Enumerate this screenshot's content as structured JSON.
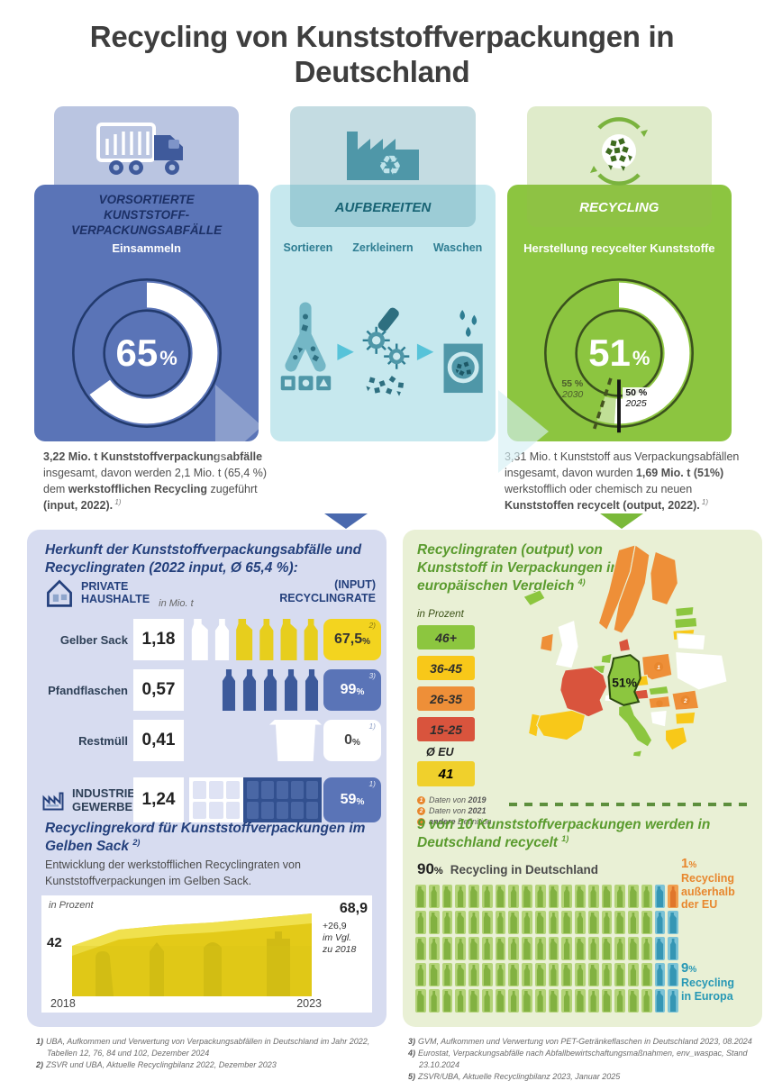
{
  "title": "Recycling von Kunststoffverpackungen in Deutschland",
  "palette": {
    "blue_panel": "#5a74b7",
    "navy": "#24407c",
    "teal_panel": "#c6e8ee",
    "teal_dark": "#2e7d92",
    "green_panel": "#8cc540",
    "green_text": "#5a9b2e",
    "yellow": "#f3d41f",
    "orange": "#e8872e",
    "red": "#d9543d",
    "lavender_card": "#d7dcf0",
    "green_card": "#e9f0d5",
    "teal_stat": "#2798b5"
  },
  "flow": {
    "step1": {
      "badge": "VORSORTIERTE  KUNSTSTOFF-VERPACKUNGSABFÄLLE",
      "subtitle": "Einsammeln",
      "donut_value": "65",
      "donut_unit": "%"
    },
    "step2": {
      "badge": "AUFBEREITEN",
      "steps": [
        "Sortieren",
        "Zerkleinern",
        "Waschen"
      ]
    },
    "step3": {
      "badge": "RECYCLING",
      "subtitle": "Herstellung recycelter Kunststoffe",
      "donut_value": "51",
      "donut_unit": "%",
      "marker_2030_pct": "55 %",
      "marker_2030_year": "2030",
      "marker_2025_pct": "50 %",
      "marker_2025_year": "2025"
    },
    "note_left": {
      "segments": [
        {
          "t": "3,22 Mio. t Kunststoffverpackungsabfälle",
          "b": true
        },
        {
          "t": " insgesamt, davon werden 2,1 Mio. t (65,4 %) dem "
        },
        {
          "t": "werkstofflichen Recycling",
          "b": true
        },
        {
          "t": " zugeführt "
        },
        {
          "t": "(input, 2022).",
          "b": true
        },
        {
          "t": " 1)",
          "sup": true
        }
      ]
    },
    "note_right": {
      "segments": [
        {
          "t": "3,31 Mio. t Kunststoff aus Verpackungsabfällen insgesamt, davon wurden "
        },
        {
          "t": "1,69 Mio. t",
          "b": true
        },
        {
          "t": " "
        },
        {
          "t": "(51%)",
          "b": true
        },
        {
          "t": " werkstofflich oder chemisch zu neuen "
        },
        {
          "t": "Kunststoffen recycelt (output, 2022).",
          "b": true
        },
        {
          "t": " 1)",
          "sup": true
        }
      ]
    }
  },
  "sources": {
    "heading": "Herkunft der Kunststoffverpackungsabfälle und Recyclingraten (2022 input, Ø 65,4 %):",
    "group1_line1": "PRIVATE",
    "group1_line2": "HAUSHALTE",
    "unit_label": "in Mio. t",
    "rate_header_line1": "(INPUT)",
    "rate_header_line2": "RECYCLINGRATE",
    "rows": [
      {
        "label": "Gelber Sack",
        "value": "1,18",
        "rate": "67,5",
        "unit": "%",
        "fn": "2)"
      },
      {
        "label": "Pfandflaschen",
        "value": "0,57",
        "rate": "99",
        "unit": "%",
        "fn": "3)"
      },
      {
        "label": "Restmüll",
        "value": "0,41",
        "rate": "0",
        "unit": "%",
        "fn": "1)"
      }
    ],
    "industry": {
      "label_line1": "INDUSTRIE",
      "label_line2": "GEWERBE",
      "value": "1,24",
      "rate": "59",
      "unit": "%",
      "fn": "1)"
    }
  },
  "record": {
    "heading": "Recyclingrekord für Kunststoffverpackungen im Gelben Sack",
    "heading_fn": "2)",
    "description": "Entwicklung der werkstofflichen Recyclingraten von Kunststoffverpackungen im Gelben Sack.",
    "unit_label": "in Prozent",
    "start_value": "42",
    "end_value": "68,9",
    "delta_line1": "+26,9",
    "delta_line2": "im Vgl.",
    "delta_line3": "zu 2018",
    "start_year": "2018",
    "end_year": "2023"
  },
  "map": {
    "heading": "Recyclingraten (output) von Kunststoff in Verpackungen im europäischen Vergleich",
    "heading_fn": "4)",
    "unit_label": "in Prozent",
    "legend": [
      {
        "label": "46+",
        "color": "#8cc63f"
      },
      {
        "label": "36-45",
        "color": "#f8c819"
      },
      {
        "label": "26-35",
        "color": "#ee8f38"
      },
      {
        "label": "15-25",
        "color": "#d9543d"
      }
    ],
    "eu_label": "Ø EU",
    "eu_value": "41",
    "germany_label": "51%",
    "notes": [
      {
        "marker": "1",
        "segments": [
          {
            "t": "Daten von "
          },
          {
            "t": "2019",
            "b": true
          }
        ]
      },
      {
        "marker": "2",
        "segments": [
          {
            "t": "Daten von "
          },
          {
            "t": "2021",
            "b": true
          }
        ]
      },
      {
        "marker": "",
        "segments": [
          {
            "t": "andere",
            "b": true
          },
          {
            "t": " Definition"
          }
        ]
      }
    ]
  },
  "nine_of_ten": {
    "heading": "9 von 10 Kunststoffverpackungen werden in Deutschland recycelt",
    "heading_fn": "1)",
    "de": {
      "value": "90",
      "unit": "%",
      "label": "Recycling in Deutschland"
    },
    "non_eu": {
      "value": "1",
      "unit": "%",
      "label_line1": "Recycling",
      "label_line2": "außerhalb",
      "label_line3": "der EU"
    },
    "eu": {
      "value": "9",
      "unit": "%",
      "label_line1": "Recycling",
      "label_line2": "in Europa"
    },
    "grid": {
      "rows": 5,
      "cols": 20,
      "green_count": 90,
      "blue_count": 9,
      "orange_count": 1
    }
  },
  "footnotes": {
    "left": [
      {
        "num": "1)",
        "text": "UBA, Aufkommen und Verwertung von Verpackungsabfällen in Deutschland im Jahr 2022, Tabellen 12, 76, 84 und 102, Dezember 2024"
      },
      {
        "num": "2)",
        "text": "ZSVR und UBA, Aktuelle Recyclingbilanz 2022, Dezember 2023"
      }
    ],
    "right": [
      {
        "num": "3)",
        "text": "GVM, Aufkommen und Verwertung von PET-Getränkeflaschen in Deutschland 2023, 08.2024"
      },
      {
        "num": "4)",
        "text": "Eurostat, Verpackungsabfälle nach Abfallbewirtschaftungsmaßnahmen, env_waspac, Stand 23.10.2024"
      },
      {
        "num": "5)",
        "text": "ZSVR/UBA, Aktuelle Recyclingbilanz 2023, Januar 2025"
      }
    ]
  },
  "chart_data": [
    {
      "type": "pie",
      "title": "Einsammeln – vorsortierte Kunststoffverpackungsabfälle (input 2022)",
      "categories": [
        "werkstoffliches Recycling",
        "Rest"
      ],
      "values": [
        65,
        35
      ],
      "unit": "%"
    },
    {
      "type": "pie",
      "title": "Recycling – Herstellung recycelter Kunststoffe (output 2022)",
      "categories": [
        "recycelt",
        "Rest"
      ],
      "values": [
        51,
        49
      ],
      "unit": "%",
      "targets": [
        {
          "label": "50%",
          "year": "2025"
        },
        {
          "label": "55%",
          "year": "2030"
        }
      ]
    },
    {
      "type": "bar",
      "title": "Herkunft der Kunststoffverpackungsabfälle und Recyclingraten (2022 input, Ø 65,4 %)",
      "categories": [
        "Gelber Sack",
        "Pfandflaschen",
        "Restmüll",
        "Industrie/Gewerbe"
      ],
      "series": [
        {
          "name": "Menge in Mio. t",
          "values": [
            1.18,
            0.57,
            0.41,
            1.24
          ]
        },
        {
          "name": "Recyclingrate in %",
          "values": [
            67.5,
            99,
            0,
            59
          ]
        }
      ]
    },
    {
      "type": "heatmap",
      "title": "Recyclingraten (output) von Kunststoff in Verpackungen im europäischen Vergleich",
      "unit": "Prozent",
      "bins": [
        "46+",
        "36-45",
        "26-35",
        "15-25"
      ],
      "eu_average": 41,
      "labeled_values": [
        {
          "country": "Deutschland",
          "value": 51
        }
      ]
    },
    {
      "type": "area",
      "title": "Recyclingrekord für Kunststoffverpackungen im Gelben Sack",
      "x": [
        "2018",
        "2023"
      ],
      "values": [
        42,
        68.9
      ],
      "ylabel": "in Prozent",
      "annotation": "+26,9 im Vgl. zu 2018"
    },
    {
      "type": "pie",
      "title": "9 von 10 Kunststoffverpackungen werden in Deutschland recycelt",
      "categories": [
        "Recycling in Deutschland",
        "Recycling in Europa",
        "Recycling außerhalb der EU"
      ],
      "values": [
        90,
        9,
        1
      ],
      "unit": "%"
    }
  ]
}
